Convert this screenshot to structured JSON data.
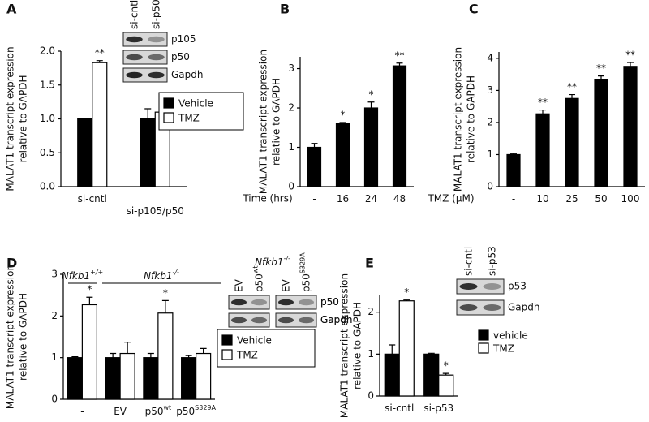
{
  "chart_data": [
    {
      "type": "bar",
      "panel": "A",
      "y_label": [
        "MALAT1 transcript expression",
        "relative to GAPDH"
      ],
      "categories": [
        "si-cntl",
        "si-p105/p50"
      ],
      "series": [
        {
          "name": "Vehicle",
          "color": "#000000",
          "values": [
            1.0,
            1.0
          ],
          "errors": [
            0.01,
            0.15
          ],
          "significance": [
            null,
            null
          ]
        },
        {
          "name": "TMZ",
          "color": "#ffffff",
          "values": [
            1.83,
            1.1
          ],
          "errors": [
            0.03,
            0.18
          ],
          "significance": [
            "**",
            null
          ]
        }
      ],
      "ylim": [
        0,
        2
      ],
      "yticks": [
        {
          "value": 0,
          "label": "0.0"
        },
        {
          "value": 0.5,
          "label": "0.5"
        },
        {
          "value": 1,
          "label": "1.0"
        },
        {
          "value": 1.5,
          "label": "1.5"
        },
        {
          "value": 2,
          "label": "2.0"
        }
      ],
      "legend_frame": true,
      "blot": {
        "lanes": [
          "si-cntl",
          "si-p50"
        ],
        "lane_superscripts": [
          null,
          null
        ],
        "bands": [
          "p105",
          "p50",
          "Gapdh"
        ]
      }
    },
    {
      "type": "bar",
      "panel": "B",
      "y_label": [
        "MALAT1 transcript expression",
        "relative to GAPDH"
      ],
      "x_label": "Time (hrs)",
      "categories": [
        "-",
        "16",
        "24",
        "48"
      ],
      "values": [
        1.0,
        1.6,
        2.0,
        3.07
      ],
      "errors": [
        0.1,
        0.03,
        0.15,
        0.07
      ],
      "significance": [
        null,
        "*",
        "*",
        "**"
      ],
      "color": "#000000",
      "ylim": [
        0,
        3.3
      ],
      "yticks": [
        0,
        1,
        2,
        3
      ]
    },
    {
      "type": "bar",
      "panel": "C",
      "y_label": [
        "MALAT1 transcript expression",
        "relative to GAPDH"
      ],
      "x_label": "TMZ (µM)",
      "categories": [
        "-",
        "10",
        "25",
        "50",
        "100"
      ],
      "values": [
        1.0,
        2.27,
        2.75,
        3.35,
        3.75
      ],
      "errors": [
        0.03,
        0.12,
        0.12,
        0.1,
        0.12
      ],
      "significance": [
        null,
        "**",
        "**",
        "**",
        "**"
      ],
      "color": "#000000",
      "ylim": [
        0,
        4.2
      ],
      "yticks": [
        0,
        1,
        2,
        3,
        4
      ]
    },
    {
      "type": "bar",
      "panel": "D",
      "y_label": [
        "MALAT1 transcript expression",
        "relative to GAPDH"
      ],
      "categories": [
        "-",
        "EV",
        "p50",
        "p50"
      ],
      "category_superscripts": [
        null,
        null,
        "wt",
        "S329A"
      ],
      "series": [
        {
          "name": "Vehicle",
          "color": "#000000",
          "values": [
            1.0,
            1.0,
            1.0,
            1.0
          ],
          "errors": [
            0.02,
            0.1,
            0.1,
            0.05
          ],
          "significance": [
            null,
            null,
            null,
            null
          ]
        },
        {
          "name": "TMZ",
          "color": "#ffffff",
          "values": [
            2.27,
            1.1,
            2.07,
            1.1
          ],
          "errors": [
            0.18,
            0.27,
            0.3,
            0.12
          ],
          "significance": [
            "*",
            null,
            "*",
            null
          ]
        }
      ],
      "ylim": [
        0,
        3
      ],
      "yticks": [
        0,
        1,
        2,
        3
      ],
      "legend_frame": true,
      "genotype_labels": [
        {
          "text": "Nfkb1",
          "superscript": "+/+"
        },
        {
          "text": "Nfkb1",
          "superscript": "-/-"
        }
      ],
      "blot_title": {
        "text": "Nfkb1",
        "superscript": "-/-"
      },
      "blots": [
        {
          "lanes": [
            "EV",
            "p50"
          ],
          "lane_superscripts": [
            null,
            "wt"
          ],
          "bands": [
            "p50",
            "Gapdh"
          ]
        },
        {
          "lanes": [
            "EV",
            "p50"
          ],
          "lane_superscripts": [
            null,
            "S329A"
          ],
          "bands": [
            "p50",
            "Gapdh"
          ]
        }
      ]
    },
    {
      "type": "bar",
      "panel": "E",
      "y_label": [
        "MALAT1 transcript expression",
        "relative to GAPDH"
      ],
      "categories": [
        "si-cntl",
        "si-p53"
      ],
      "series": [
        {
          "name": "vehicle",
          "color": "#000000",
          "values": [
            1.0,
            1.0
          ],
          "errors": [
            0.22,
            0.02
          ],
          "significance": [
            null,
            null
          ]
        },
        {
          "name": "TMZ",
          "color": "#ffffff",
          "values": [
            2.27,
            0.5
          ],
          "errors": [
            0.02,
            0.04
          ],
          "significance": [
            "*",
            "*"
          ]
        }
      ],
      "ylim": [
        0,
        2.4
      ],
      "yticks": [
        0,
        1,
        2
      ],
      "legend_frame": false,
      "blot": {
        "lanes": [
          "si-cntl",
          "si-p53"
        ],
        "lane_superscripts": [
          null,
          null
        ],
        "bands": [
          "p53",
          "Gapdh"
        ]
      }
    }
  ]
}
